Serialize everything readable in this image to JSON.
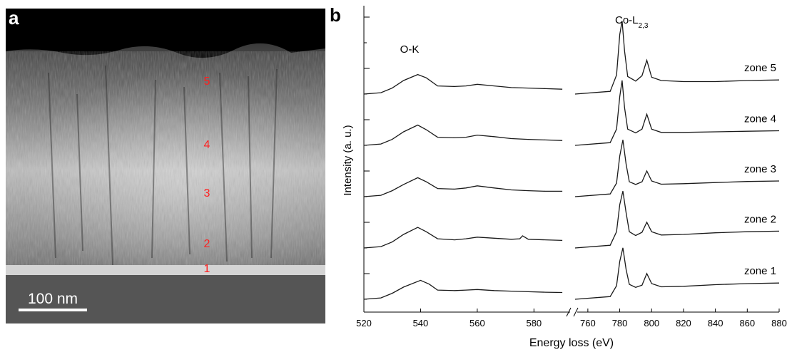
{
  "panel_a": {
    "label": "a",
    "scale_bar": "100 nm",
    "zone_markers": [
      "5",
      "4",
      "3",
      "2",
      "1"
    ],
    "colors": {
      "markers": "#ff2020",
      "scale_bar": "#ffffff"
    }
  },
  "panel_b": {
    "label": "b",
    "chart_data": {
      "type": "line",
      "xlabel": "Energy loss (eV)",
      "ylabel": "Intensity (a. u.)",
      "x_segments": [
        [
          520,
          592
        ],
        [
          752,
          880
        ]
      ],
      "xticks": [
        520,
        540,
        560,
        580,
        760,
        780,
        800,
        820,
        840,
        860,
        880
      ],
      "annotations": [
        "O-K",
        "Co-L2,3"
      ],
      "grid": false,
      "series": [
        {
          "name": "zone 5",
          "offset": 4,
          "x": [
            520,
            526,
            530,
            534,
            539,
            542,
            546,
            552,
            556,
            560,
            566,
            572,
            578,
            584,
            590,
            752,
            774,
            778,
            780,
            781.5,
            783,
            785,
            790,
            794,
            797,
            800,
            806,
            820,
            840,
            860,
            880
          ],
          "y": [
            0.0,
            0.05,
            0.22,
            0.5,
            0.72,
            0.6,
            0.3,
            0.28,
            0.3,
            0.36,
            0.3,
            0.24,
            0.22,
            0.2,
            0.18,
            0.0,
            0.1,
            0.7,
            2.2,
            2.7,
            1.6,
            0.65,
            0.48,
            0.68,
            1.25,
            0.62,
            0.5,
            0.46,
            0.46,
            0.5,
            0.52
          ]
        },
        {
          "name": "zone 4",
          "offset": 3,
          "x": [
            520,
            526,
            530,
            534,
            539,
            542,
            546,
            552,
            556,
            560,
            566,
            572,
            578,
            584,
            590,
            752,
            774,
            778,
            780,
            781.5,
            783,
            785,
            790,
            794,
            797,
            800,
            806,
            820,
            840,
            860,
            880
          ],
          "y": [
            0.0,
            0.05,
            0.22,
            0.5,
            0.75,
            0.58,
            0.3,
            0.28,
            0.3,
            0.38,
            0.32,
            0.25,
            0.22,
            0.2,
            0.18,
            0.0,
            0.1,
            0.6,
            1.8,
            2.4,
            1.4,
            0.6,
            0.46,
            0.6,
            1.15,
            0.6,
            0.48,
            0.48,
            0.5,
            0.52,
            0.54
          ]
        },
        {
          "name": "zone 3",
          "offset": 2,
          "x": [
            520,
            526,
            530,
            534,
            539,
            542,
            546,
            552,
            556,
            560,
            566,
            572,
            578,
            584,
            590,
            752,
            774,
            778,
            780,
            782,
            784,
            786,
            790,
            794,
            797,
            800,
            806,
            820,
            840,
            860,
            880
          ],
          "y": [
            0.0,
            0.05,
            0.22,
            0.45,
            0.7,
            0.55,
            0.3,
            0.28,
            0.32,
            0.4,
            0.32,
            0.25,
            0.22,
            0.2,
            0.2,
            0.0,
            0.1,
            0.5,
            1.5,
            2.1,
            1.2,
            0.55,
            0.45,
            0.55,
            0.95,
            0.58,
            0.46,
            0.48,
            0.52,
            0.56,
            0.58
          ]
        },
        {
          "name": "zone 2",
          "offset": 1,
          "x": [
            520,
            526,
            530,
            534,
            539,
            542,
            546,
            552,
            556,
            560,
            566,
            572,
            575,
            576,
            578,
            584,
            590,
            752,
            774,
            778,
            780,
            782,
            784,
            786,
            790,
            794,
            797,
            800,
            806,
            820,
            840,
            860,
            880
          ],
          "y": [
            0.0,
            0.05,
            0.22,
            0.5,
            0.76,
            0.6,
            0.34,
            0.3,
            0.34,
            0.4,
            0.36,
            0.32,
            0.34,
            0.45,
            0.32,
            0.3,
            0.28,
            0.0,
            0.1,
            0.6,
            1.6,
            2.1,
            1.3,
            0.6,
            0.46,
            0.58,
            0.95,
            0.6,
            0.48,
            0.5,
            0.56,
            0.6,
            0.62
          ]
        },
        {
          "name": "zone 1",
          "offset": 0,
          "x": [
            520,
            526,
            530,
            534,
            540,
            543,
            546,
            552,
            556,
            560,
            566,
            572,
            578,
            584,
            590,
            752,
            774,
            778,
            780,
            782,
            784,
            786,
            790,
            794,
            797,
            800,
            806,
            820,
            840,
            860,
            880
          ],
          "y": [
            0.0,
            0.05,
            0.22,
            0.45,
            0.7,
            0.56,
            0.34,
            0.32,
            0.34,
            0.36,
            0.32,
            0.3,
            0.28,
            0.26,
            0.25,
            0.0,
            0.1,
            0.5,
            1.4,
            1.9,
            1.1,
            0.55,
            0.44,
            0.52,
            0.95,
            0.58,
            0.46,
            0.48,
            0.54,
            0.58,
            0.6
          ]
        }
      ]
    }
  }
}
